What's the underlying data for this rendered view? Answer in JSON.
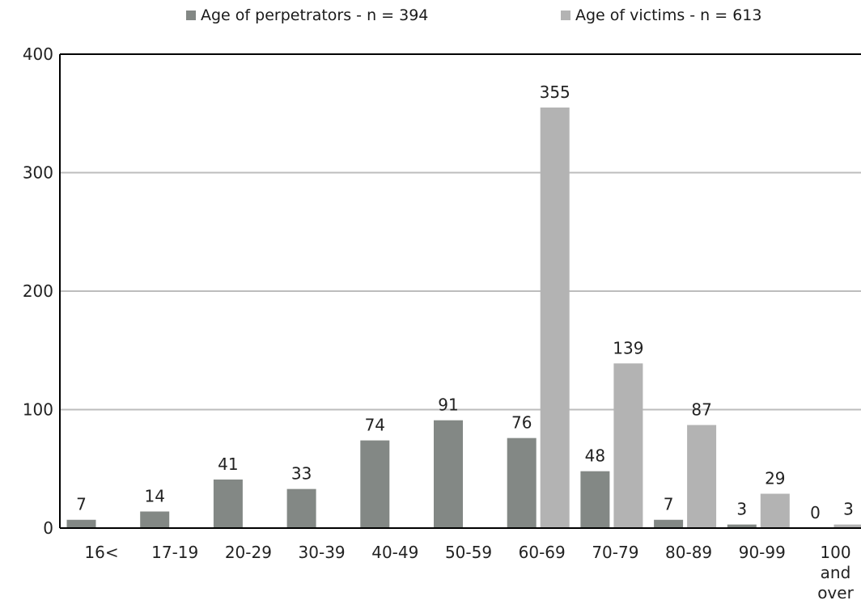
{
  "chart_data": {
    "type": "bar",
    "categories": [
      "16<",
      "17-19",
      "20-29",
      "30-39",
      "40-49",
      "50-59",
      "60-69",
      "70-79",
      "80-89",
      "90-99",
      "100 and over"
    ],
    "series": [
      {
        "name": "Age of perpetrators - n = 394",
        "color": "#838885",
        "values": [
          7,
          14,
          41,
          33,
          74,
          91,
          76,
          48,
          7,
          3,
          0
        ]
      },
      {
        "name": "Age of victims - n = 613",
        "color": "#b3b3b3",
        "values": [
          null,
          null,
          null,
          null,
          null,
          null,
          355,
          139,
          87,
          29,
          3
        ]
      }
    ],
    "ylim": [
      0,
      400
    ],
    "yticks": [
      0,
      100,
      200,
      300,
      400
    ],
    "grid": true,
    "legend_position": "top-center"
  }
}
